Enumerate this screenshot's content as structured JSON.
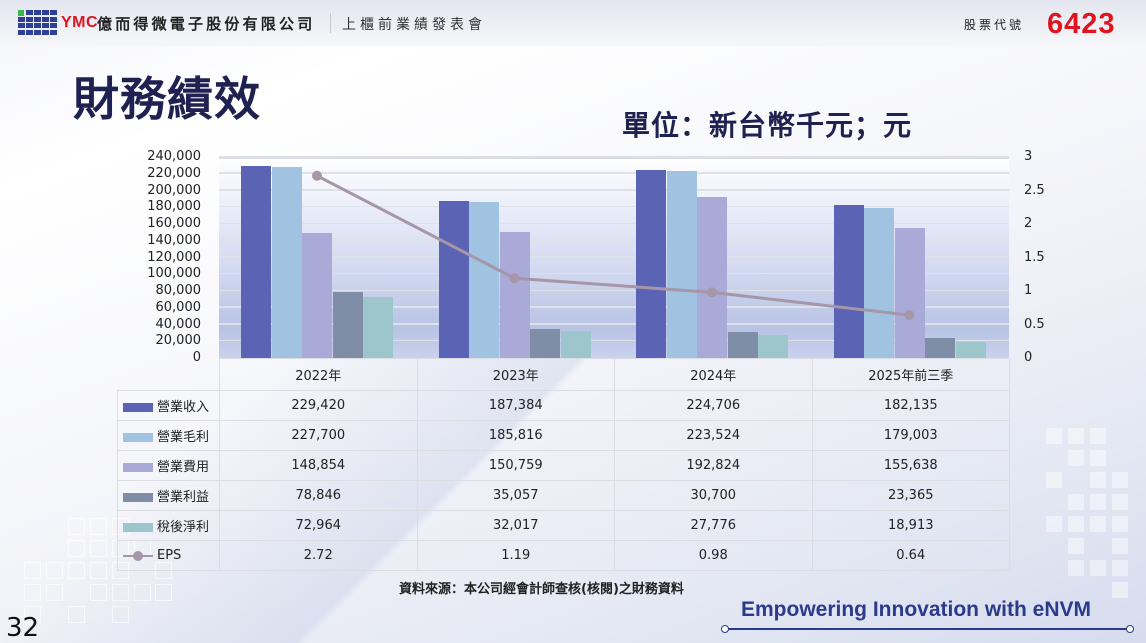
{
  "header": {
    "brand": "YMC",
    "company": "億而得微電子股份有限公司",
    "event": "上櫃前業績發表會",
    "stock_label": "股票代號",
    "stock_code": "6423"
  },
  "page": {
    "title": "財務績效",
    "unit": "單位：新台幣千元；元",
    "source": "資料來源：本公司經會計師查核(核閱)之財務資料",
    "slogan": "Empowering Innovation with eNVM",
    "page_number": "32"
  },
  "colors": {
    "brand_red": "#e0141e",
    "navy": "#1f2150",
    "revenue": "#5b63b5",
    "gross_profit": "#9fc3e1",
    "operating_expense": "#a9aad8",
    "operating_income": "#7f8da6",
    "net_income": "#9cc6cb",
    "eps": "#a596a8"
  },
  "chart_data": {
    "type": "bar",
    "title": "財務績效",
    "subtitle": "單位：新台幣千元；元",
    "categories": [
      "2022年",
      "2023年",
      "2024年",
      "2025年前三季"
    ],
    "series": [
      {
        "name": "營業收入",
        "type": "bar",
        "axis": "left",
        "color": "#5b63b5",
        "values": [
          229420,
          187384,
          224706,
          182135
        ]
      },
      {
        "name": "營業毛利",
        "type": "bar",
        "axis": "left",
        "color": "#9fc3e1",
        "values": [
          227700,
          185816,
          223524,
          179003
        ]
      },
      {
        "name": "營業費用",
        "type": "bar",
        "axis": "left",
        "color": "#a9aad8",
        "values": [
          148854,
          150759,
          192824,
          155638
        ]
      },
      {
        "name": "營業利益",
        "type": "bar",
        "axis": "left",
        "color": "#7f8da6",
        "values": [
          78846,
          35057,
          30700,
          23365
        ]
      },
      {
        "name": "稅後淨利",
        "type": "bar",
        "axis": "left",
        "color": "#9cc6cb",
        "values": [
          72964,
          32017,
          27776,
          18913
        ]
      },
      {
        "name": "EPS",
        "type": "line",
        "axis": "right",
        "color": "#a596a8",
        "values": [
          2.72,
          1.19,
          0.98,
          0.64
        ]
      }
    ],
    "display_values": {
      "營業收入": [
        "229,420",
        "187,384",
        "224,706",
        "182,135"
      ],
      "營業毛利": [
        "227,700",
        "185,816",
        "223,524",
        "179,003"
      ],
      "營業費用": [
        "148,854",
        "150,759",
        "192,824",
        "155,638"
      ],
      "營業利益": [
        "78,846",
        "35,057",
        "30,700",
        "23,365"
      ],
      "稅後淨利": [
        "72,964",
        "32,017",
        "27,776",
        "18,913"
      ],
      "EPS": [
        "2.72",
        "1.19",
        "0.98",
        "0.64"
      ]
    },
    "y_left": {
      "min": 0,
      "max": 240000,
      "step": 20000,
      "ticks": [
        "0",
        "20,000",
        "40,000",
        "60,000",
        "80,000",
        "100,000",
        "120,000",
        "140,000",
        "160,000",
        "180,000",
        "200,000",
        "220,000",
        "240,000"
      ]
    },
    "y_right": {
      "min": 0,
      "max": 3,
      "step": 0.5,
      "ticks": [
        "0",
        "0.5",
        "1",
        "1.5",
        "2",
        "2.5",
        "3"
      ]
    },
    "grid": true,
    "legend": "data-table-below"
  }
}
